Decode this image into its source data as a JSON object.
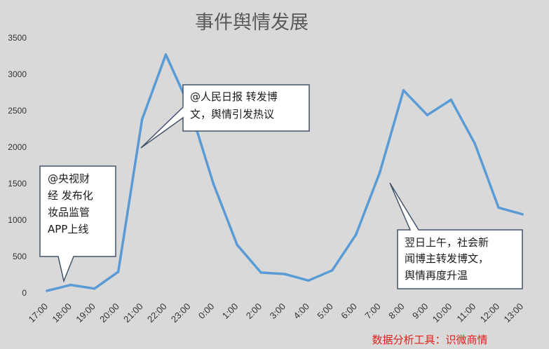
{
  "chart_data": {
    "type": "line",
    "title": "事件舆情发展",
    "xlabel": "",
    "ylabel": "",
    "categories": [
      "17:00",
      "18:00",
      "19:00",
      "20:00",
      "21:00",
      "22:00",
      "23:00",
      "0:00",
      "1:00",
      "2:00",
      "3:00",
      "4:00",
      "5:00",
      "6:00",
      "7:00",
      "8:00",
      "9:00",
      "10:00",
      "11:00",
      "12:00",
      "13:00"
    ],
    "series": [
      {
        "values": [
          30,
          110,
          60,
          290,
          2380,
          3270,
          2550,
          1500,
          660,
          280,
          260,
          170,
          310,
          800,
          1650,
          2780,
          2440,
          2650,
          2050,
          1170,
          1080
        ]
      }
    ],
    "ylim": [
      0,
      3500
    ],
    "yticks": [
      0,
      500,
      1000,
      1500,
      2000,
      2500,
      3000,
      3500
    ],
    "grid": false,
    "line_color": "#5b9bd5",
    "annotations": [
      {
        "lines": [
          "@央视财",
          "经 发布化",
          "妆品监管",
          "APP上线"
        ],
        "category": "18:00"
      },
      {
        "lines": [
          "@人民日报  转发博",
          "文，舆情引发热议"
        ],
        "category": "21:00"
      },
      {
        "lines": [
          "翌日上午，社会新",
          "闻博主转发博文，",
          "舆情再度升温"
        ],
        "category": "7:00"
      }
    ]
  },
  "source_note": "数据分析工具：识微商情"
}
